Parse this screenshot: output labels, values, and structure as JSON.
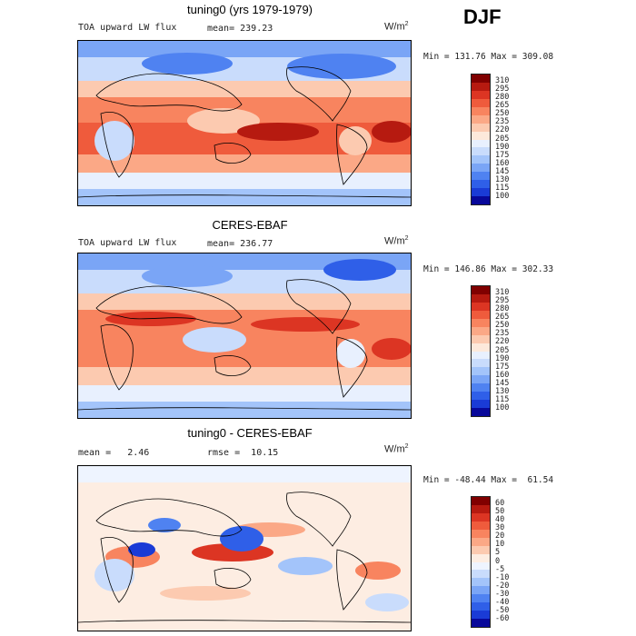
{
  "season": "DJF",
  "palettes": {
    "full": [
      "#08089a",
      "#1a3bd6",
      "#2f5fe8",
      "#4f82f1",
      "#7aa5f6",
      "#a3c4fa",
      "#c9dcfc",
      "#e8f0fe",
      "#fde9db",
      "#fccab0",
      "#fba886",
      "#f8845f",
      "#ef5b3c",
      "#dc3523",
      "#b61a10",
      "#800000"
    ],
    "diff": [
      "#08089a",
      "#1a3bd6",
      "#2f5fe8",
      "#4f82f1",
      "#7aa5f6",
      "#a3c4fa",
      "#c9dcfc",
      "#eef4ff",
      "#fdede2",
      "#fccab0",
      "#fba886",
      "#f8845f",
      "#ef5b3c",
      "#dc3523",
      "#b61a10",
      "#800000"
    ]
  },
  "panels": [
    {
      "title": "tuning0 (yrs 1979-1979)",
      "field_label": "TOA upward LW flux",
      "mean_label": "mean=",
      "mean_value": "239.23",
      "rmse_label": "",
      "rmse_value": "",
      "units_base": "W/m",
      "units_exp": "2",
      "min_label": "Min =",
      "min_value": "131.76",
      "max_label": "Max =",
      "max_value": "309.08",
      "colorbar_labels": [
        "310",
        "295",
        "280",
        "265",
        "250",
        "235",
        "220",
        "205",
        "190",
        "175",
        "160",
        "145",
        "130",
        "115",
        "100"
      ],
      "palette": "full"
    },
    {
      "title": "CERES-EBAF",
      "field_label": "TOA upward LW flux",
      "mean_label": "mean=",
      "mean_value": "236.77",
      "rmse_label": "",
      "rmse_value": "",
      "units_base": "W/m",
      "units_exp": "2",
      "min_label": "Min =",
      "min_value": "146.86",
      "max_label": "Max =",
      "max_value": "302.33",
      "colorbar_labels": [
        "310",
        "295",
        "280",
        "265",
        "250",
        "235",
        "220",
        "205",
        "190",
        "175",
        "160",
        "145",
        "130",
        "115",
        "100"
      ],
      "palette": "full"
    },
    {
      "title": "tuning0 - CERES-EBAF",
      "field_label": "",
      "mean_label": "mean =",
      "mean_value": "2.46",
      "rmse_label": "rmse =",
      "rmse_value": "10.15",
      "units_base": "W/m",
      "units_exp": "2",
      "min_label": "Min =",
      "min_value": "-48.44",
      "max_label": "Max =",
      "max_value": "61.54",
      "colorbar_labels": [
        "60",
        "50",
        "40",
        "30",
        "20",
        "10",
        "5",
        "0",
        "-5",
        "-10",
        "-20",
        "-30",
        "-40",
        "-50",
        "-60"
      ],
      "palette": "diff"
    }
  ],
  "chart_data": [
    {
      "type": "heatmap",
      "title": "tuning0 (yrs 1979-1979)",
      "variable": "TOA upward LW flux",
      "units": "W/m2",
      "mean": 239.23,
      "min": 131.76,
      "max": 309.08,
      "levels": [
        100,
        115,
        130,
        145,
        160,
        175,
        190,
        205,
        220,
        235,
        250,
        265,
        280,
        295,
        310
      ]
    },
    {
      "type": "heatmap",
      "title": "CERES-EBAF",
      "variable": "TOA upward LW flux",
      "units": "W/m2",
      "mean": 236.77,
      "min": 146.86,
      "max": 302.33,
      "levels": [
        100,
        115,
        130,
        145,
        160,
        175,
        190,
        205,
        220,
        235,
        250,
        265,
        280,
        295,
        310
      ]
    },
    {
      "type": "heatmap",
      "title": "tuning0 - CERES-EBAF",
      "units": "W/m2",
      "mean": 2.46,
      "rmse": 10.15,
      "min": -48.44,
      "max": 61.54,
      "levels": [
        -60,
        -50,
        -40,
        -30,
        -20,
        -10,
        -5,
        0,
        5,
        10,
        20,
        30,
        40,
        50,
        60
      ]
    }
  ]
}
